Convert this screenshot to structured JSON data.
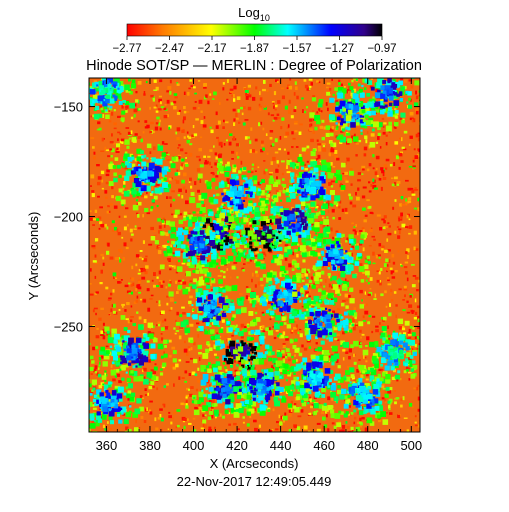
{
  "chart_data": {
    "type": "heatmap",
    "title": "Hinode SOT/SP — MERLIN : Degree of Polarization",
    "xlabel": "X (Arcseconds)",
    "ylabel": "Y (Arcseconds)",
    "xlim": [
      352,
      504
    ],
    "ylim": [
      -298,
      -137
    ],
    "xticks": [
      360,
      380,
      400,
      420,
      440,
      460,
      480,
      500
    ],
    "yticks": [
      -150,
      -200,
      -250
    ],
    "timestamp": "22‑Nov‑2017 12:49:05.449",
    "colorbar": {
      "title_main": "Log",
      "title_sub": "10",
      "range": [
        -2.77,
        -0.97
      ],
      "tick_labels": [
        "−2.77",
        "−2.47",
        "−2.17",
        "−1.87",
        "−1.57",
        "−1.27",
        "−0.97"
      ],
      "tick_values": [
        -2.77,
        -2.47,
        -2.17,
        -1.87,
        -1.57,
        -1.27,
        -0.97
      ],
      "colors": [
        "#ff0000",
        "#ff7a00",
        "#ffff00",
        "#00ff00",
        "#00ffff",
        "#0000ff",
        "#1a0030"
      ]
    },
    "features": [
      {
        "x": 432,
        "y": -209,
        "level": -1.05
      },
      {
        "x": 412,
        "y": -207,
        "level": -1.25
      },
      {
        "x": 402,
        "y": -213,
        "level": -1.45
      },
      {
        "x": 446,
        "y": -203,
        "level": -1.4
      },
      {
        "x": 420,
        "y": -190,
        "level": -1.55
      },
      {
        "x": 408,
        "y": -242,
        "level": -1.5
      },
      {
        "x": 422,
        "y": -262,
        "level": -1.15
      },
      {
        "x": 415,
        "y": -278,
        "level": -1.45
      },
      {
        "x": 432,
        "y": -278,
        "level": -1.5
      },
      {
        "x": 378,
        "y": -181,
        "level": -1.55
      },
      {
        "x": 372,
        "y": -262,
        "level": -1.45
      },
      {
        "x": 361,
        "y": -285,
        "level": -1.55
      },
      {
        "x": 442,
        "y": -237,
        "level": -1.55
      },
      {
        "x": 472,
        "y": -153,
        "level": -1.5
      },
      {
        "x": 488,
        "y": -144,
        "level": -1.45
      },
      {
        "x": 466,
        "y": -218,
        "level": -1.55
      },
      {
        "x": 456,
        "y": -273,
        "level": -1.6
      },
      {
        "x": 460,
        "y": -248,
        "level": -1.5
      },
      {
        "x": 478,
        "y": -281,
        "level": -1.65
      },
      {
        "x": 360,
        "y": -143,
        "level": -1.7
      },
      {
        "x": 454,
        "y": -186,
        "level": -1.6
      },
      {
        "x": 493,
        "y": -262,
        "level": -1.75
      }
    ]
  }
}
